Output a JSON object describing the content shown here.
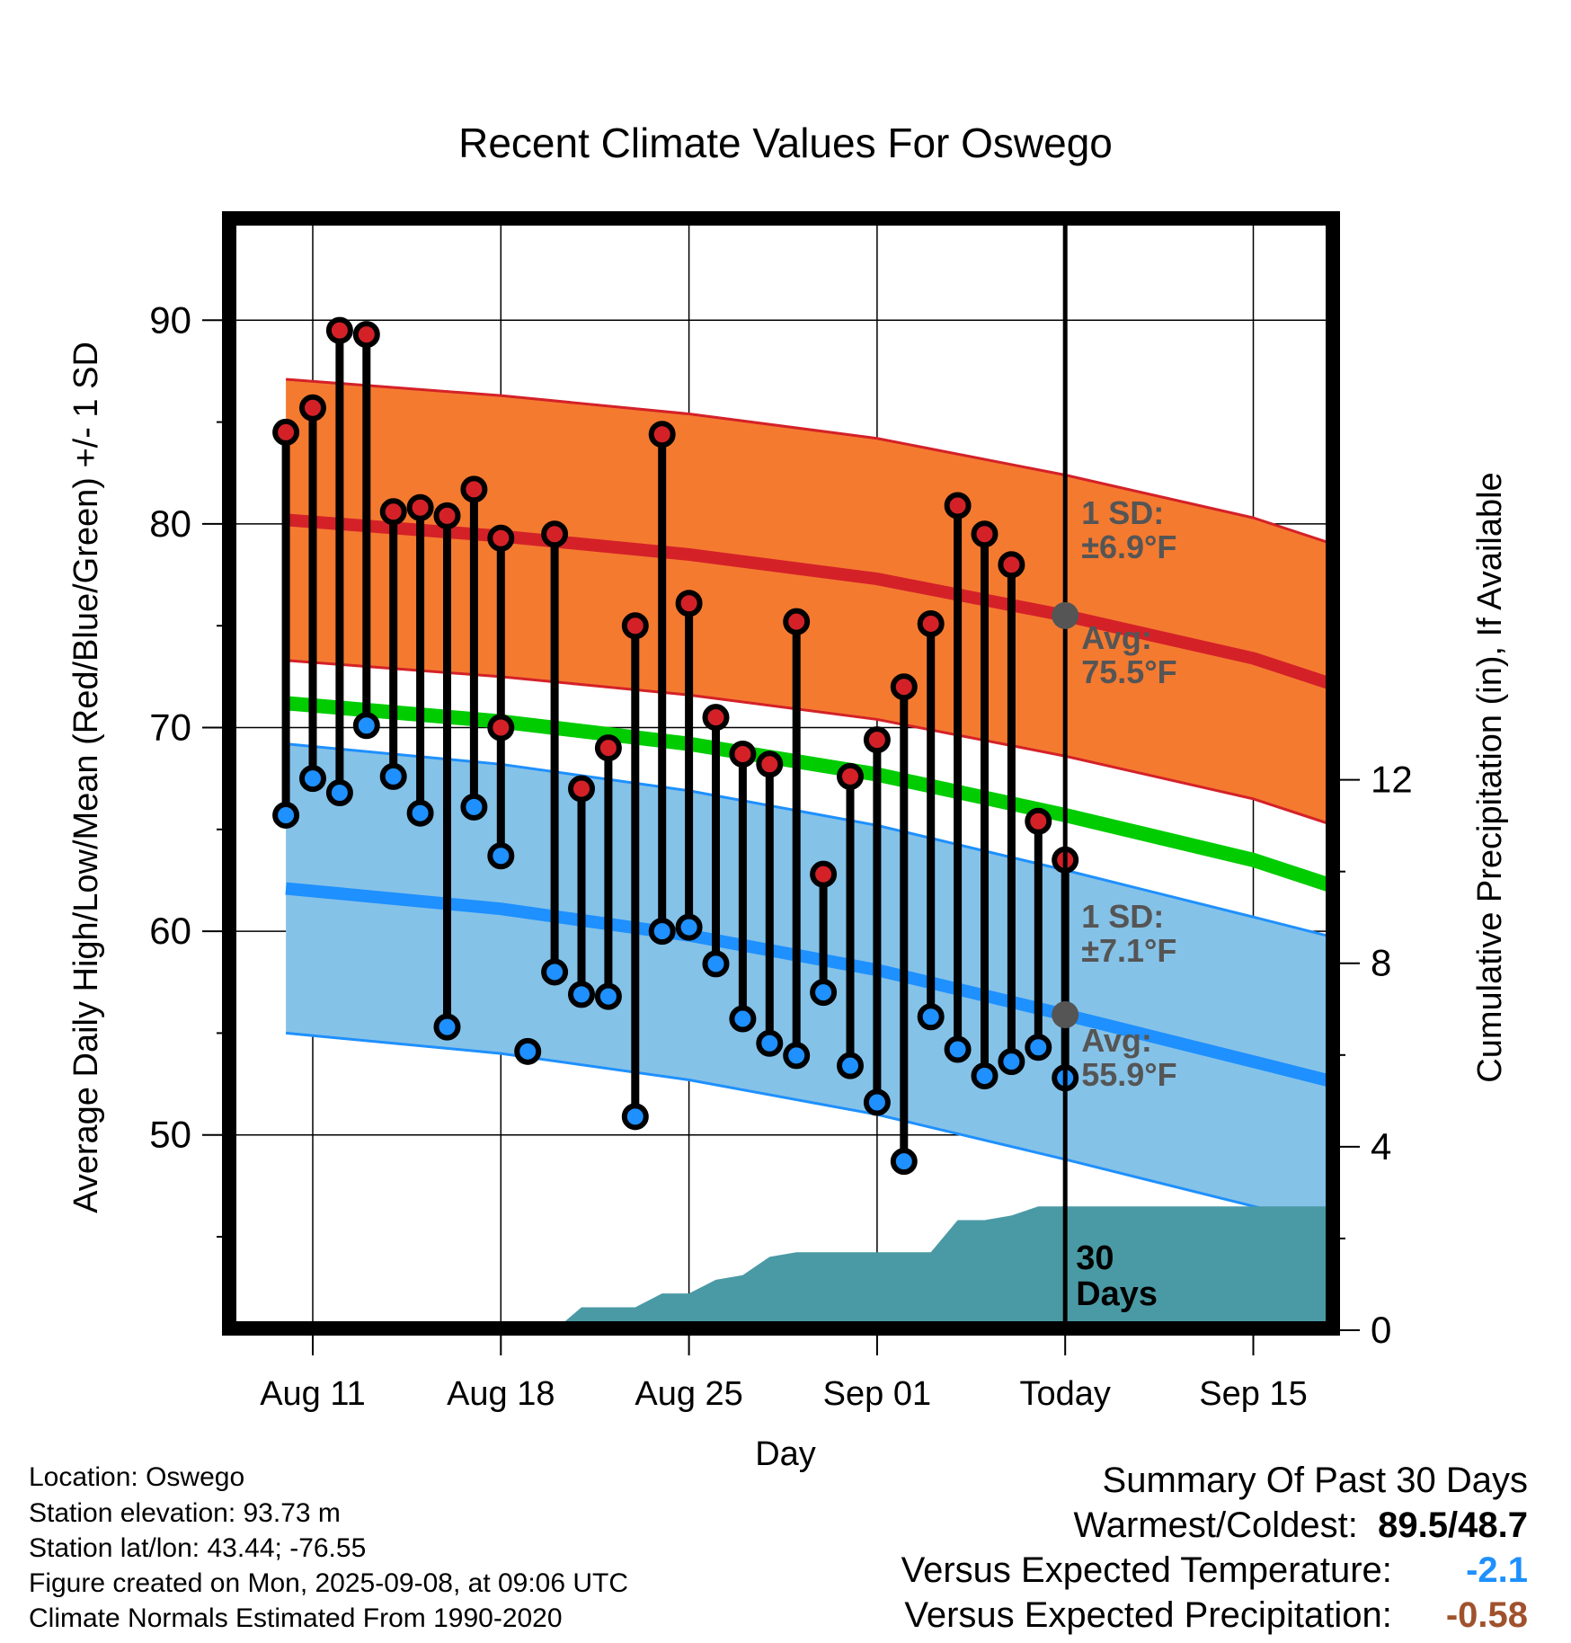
{
  "chart_data": {
    "type": "line",
    "title": "Recent Climate Values For Oswego",
    "xlabel": "Day",
    "ylabel": "Average Daily High/Low/Mean (Red/Blue/Green) +/- 1 SD",
    "y2label": "Cumulative Precipitation (in), If Available",
    "ylim": [
      40.5,
      95
    ],
    "y_ticks": [
      50,
      60,
      70,
      80,
      90
    ],
    "y2lim": [
      0,
      24.24
    ],
    "y2_ticks": [
      0,
      4,
      8,
      12
    ],
    "x_ticks": [
      "Aug 11",
      "Aug 18",
      "Aug 25",
      "Sep 01",
      "Today",
      "Sep 15"
    ],
    "grid": true,
    "today_date": "Sep 08",
    "today_label": [
      "30",
      "Days"
    ],
    "dates": [
      "Aug 10",
      "Aug 11",
      "Aug 12",
      "Aug 13",
      "Aug 14",
      "Aug 15",
      "Aug 16",
      "Aug 17",
      "Aug 18",
      "Aug 19",
      "Aug 20",
      "Aug 21",
      "Aug 22",
      "Aug 23",
      "Aug 24",
      "Aug 25",
      "Aug 26",
      "Aug 27",
      "Aug 28",
      "Aug 29",
      "Aug 30",
      "Aug 31",
      "Sep 01",
      "Sep 02",
      "Sep 03",
      "Sep 04",
      "Sep 05",
      "Sep 06",
      "Sep 07",
      "Sep 08"
    ],
    "observed_high": [
      84.5,
      85.7,
      89.5,
      89.3,
      80.6,
      80.8,
      80.4,
      81.7,
      79.3,
      null,
      79.5,
      67.0,
      69.0,
      75.0,
      84.4,
      76.1,
      70.5,
      68.7,
      68.2,
      75.2,
      62.8,
      67.6,
      69.4,
      72.0,
      75.1,
      80.9,
      79.5,
      78.0,
      65.4,
      63.5
    ],
    "observed_low": [
      65.7,
      67.5,
      66.8,
      70.1,
      67.6,
      65.8,
      55.3,
      66.1,
      63.7,
      54.1,
      58.0,
      56.9,
      56.8,
      50.9,
      60.0,
      60.2,
      58.4,
      55.7,
      54.5,
      53.9,
      57.0,
      53.4,
      51.6,
      48.7,
      55.8,
      54.2,
      52.9,
      53.6,
      54.3,
      52.8
    ],
    "observed_high_extra": {
      "date": "Aug 18",
      "value": 70.0
    },
    "normal_dates": [
      "Aug 10",
      "Aug 18",
      "Aug 25",
      "Sep 01",
      "Sep 08",
      "Sep 15",
      "Sep 18"
    ],
    "normal_high": [
      80.2,
      79.4,
      78.5,
      77.3,
      75.5,
      73.4,
      72.1
    ],
    "normal_high_sd": 6.9,
    "normal_mean": [
      71.2,
      70.3,
      69.2,
      67.7,
      65.7,
      63.5,
      62.2
    ],
    "normal_low": [
      62.1,
      61.1,
      59.8,
      58.1,
      55.9,
      53.6,
      52.6
    ],
    "normal_low_sd": 7.1,
    "high_sd_label": [
      "1 SD:",
      "±6.9°F"
    ],
    "high_avg_label": [
      "Avg:",
      "75.5°F"
    ],
    "low_sd_label": [
      "1 SD:",
      "±7.1°F"
    ],
    "low_avg_label": [
      "Avg:",
      "55.9°F"
    ],
    "precip_dates": [
      "Aug 10",
      "Aug 20",
      "Aug 21",
      "Aug 23",
      "Aug 24",
      "Aug 25",
      "Aug 26",
      "Aug 27",
      "Aug 28",
      "Aug 29",
      "Aug 30",
      "Sep 01",
      "Sep 02",
      "Sep 03",
      "Sep 04",
      "Sep 05",
      "Sep 06",
      "Sep 07",
      "Sep 08",
      "Sep 18"
    ],
    "precip_cum": [
      0,
      0,
      0.5,
      0.5,
      0.8,
      0.8,
      1.1,
      1.2,
      1.6,
      1.7,
      1.7,
      1.7,
      1.7,
      1.7,
      2.4,
      2.4,
      2.5,
      2.7,
      2.7,
      2.7
    ],
    "colors": {
      "high_band": "#f47a30",
      "high_line": "#d42128",
      "low_band": "#85c2e8",
      "low_line": "#1e90ff",
      "mean_line": "#00cc00",
      "precip": "#4a9aa5",
      "high_marker": "#d42128",
      "low_marker": "#1e90ff",
      "avg_dot": "#555555",
      "annotation": "#555555"
    }
  },
  "info": {
    "location": "Location: Oswego",
    "elevation": "Station elevation: 93.73 m",
    "latlon": "Station lat/lon: 43.44; -76.55",
    "created": "Figure created on Mon, 2025-09-08, at 09:06 UTC",
    "normals": "Climate Normals Estimated From 1990-2020"
  },
  "summary": {
    "heading": "Summary Of Past 30 Days",
    "warm_cold_label": "Warmest/Coldest:",
    "warm_cold_value": "89.5/48.7",
    "temp_label": "Versus Expected Temperature:",
    "temp_value": "-2.1",
    "temp_color": "#1e90ff",
    "precip_label": "Versus Expected Precipitation:",
    "precip_value": "-0.58",
    "precip_color": "#a0522d"
  }
}
